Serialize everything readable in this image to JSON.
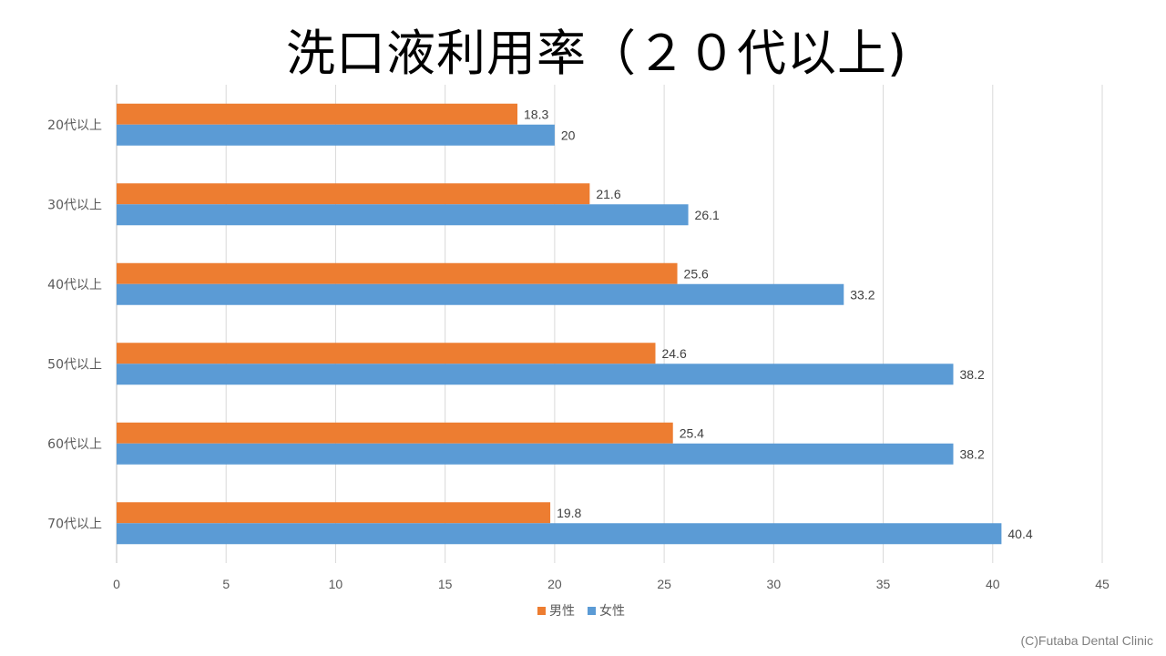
{
  "chart_data": {
    "type": "bar",
    "orientation": "horizontal",
    "title": "洗口液利用率（２０代以上)",
    "categories": [
      "20代以上",
      "30代以上",
      "40代以上",
      "50代以上",
      "60代以上",
      "70代以上"
    ],
    "series": [
      {
        "name": "男性",
        "color": "#ED7D31",
        "values": [
          18.3,
          21.6,
          25.6,
          24.6,
          25.4,
          19.8
        ]
      },
      {
        "name": "女性",
        "color": "#5B9BD5",
        "values": [
          20,
          26.1,
          33.2,
          38.2,
          38.2,
          40.4
        ]
      }
    ],
    "xlim": [
      0,
      45
    ],
    "xticks": [
      0,
      5,
      10,
      15,
      20,
      25,
      30,
      35,
      40,
      45
    ],
    "grid": true,
    "legend": "bottom-center",
    "data_labels": true
  },
  "credit": "(C)Futaba Dental Clinic"
}
